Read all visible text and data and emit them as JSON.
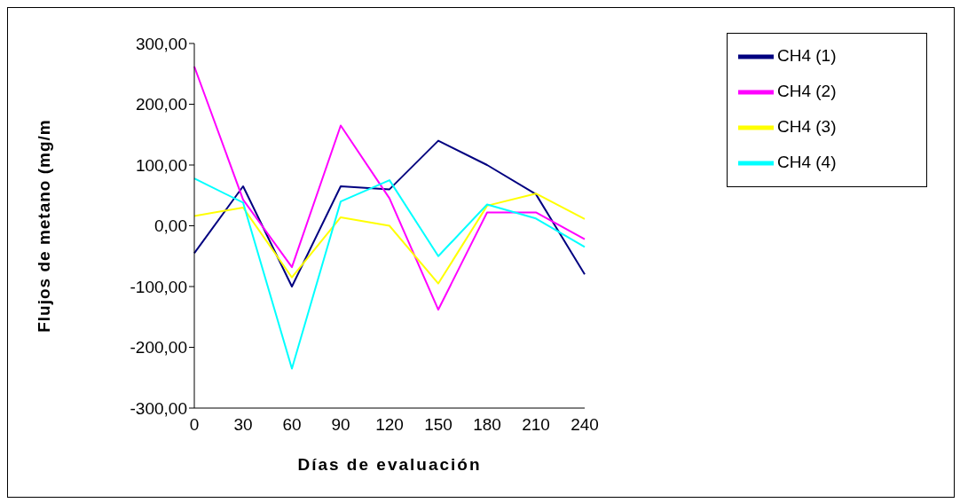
{
  "chart_data": {
    "type": "line",
    "xlabel": "Días de evaluación",
    "ylabel": "Flujos de metano (mg/m",
    "categories": [
      "0",
      "30",
      "60",
      "90",
      "120",
      "150",
      "180",
      "210",
      "240"
    ],
    "ylim": [
      -300,
      300
    ],
    "yticks": [
      {
        "value": -300,
        "label": "-300,00"
      },
      {
        "value": -200,
        "label": "-200,00"
      },
      {
        "value": -100,
        "label": "-100,00"
      },
      {
        "value": 0,
        "label": "0,00"
      },
      {
        "value": 100,
        "label": "100,00"
      },
      {
        "value": 200,
        "label": "200,00"
      },
      {
        "value": 300,
        "label": "300,00"
      }
    ],
    "series": [
      {
        "name": "CH4 (1)",
        "color": "#000080",
        "values": [
          -45,
          65,
          -100,
          65,
          60,
          140,
          100,
          52,
          -80
        ]
      },
      {
        "name": "CH4 (2)",
        "color": "#ff00ff",
        "values": [
          262,
          43,
          -68,
          165,
          45,
          -138,
          22,
          22,
          -22
        ]
      },
      {
        "name": "CH4 (3)",
        "color": "#ffff00",
        "values": [
          16,
          30,
          -85,
          14,
          0,
          -95,
          33,
          53,
          11
        ]
      },
      {
        "name": "CH4 (4)",
        "color": "#00ffff",
        "values": [
          78,
          38,
          -235,
          40,
          75,
          -50,
          35,
          12,
          -35
        ]
      }
    ],
    "grid": false,
    "legend": "top right",
    "marker": "none",
    "line_style": "solid"
  }
}
